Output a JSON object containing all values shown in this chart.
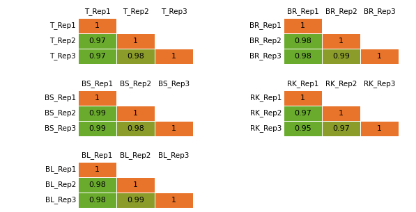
{
  "matrices": [
    {
      "name": "T",
      "col_labels": [
        "T_Rep1",
        "T_Rep2",
        "T_Rep3"
      ],
      "row_labels": [
        "T_Rep1",
        "T_Rep2",
        "T_Rep3"
      ],
      "values": [
        [
          1,
          null,
          null
        ],
        [
          0.97,
          1,
          null
        ],
        [
          0.97,
          0.98,
          1
        ]
      ]
    },
    {
      "name": "BR",
      "col_labels": [
        "BR_Rep1",
        "BR_Rep2",
        "BR_Rep3"
      ],
      "row_labels": [
        "BR_Rep1",
        "BR_Rep2",
        "BR_Rep3"
      ],
      "values": [
        [
          1,
          null,
          null
        ],
        [
          0.98,
          1,
          null
        ],
        [
          0.98,
          0.99,
          1
        ]
      ]
    },
    {
      "name": "BS",
      "col_labels": [
        "BS_Rep1",
        "BS_Rep2",
        "BS_Rep3"
      ],
      "row_labels": [
        "BS_Rep1",
        "BS_Rep2",
        "BS_Rep3"
      ],
      "values": [
        [
          1,
          null,
          null
        ],
        [
          0.99,
          1,
          null
        ],
        [
          0.99,
          0.98,
          1
        ]
      ]
    },
    {
      "name": "RK",
      "col_labels": [
        "RK_Rep1",
        "RK_Rep2",
        "RK_Rep3"
      ],
      "row_labels": [
        "RK_Rep1",
        "RK_Rep2",
        "RK_Rep3"
      ],
      "values": [
        [
          1,
          null,
          null
        ],
        [
          0.97,
          1,
          null
        ],
        [
          0.95,
          0.97,
          1
        ]
      ]
    },
    {
      "name": "BL",
      "col_labels": [
        "BL_Rep1",
        "BL_Rep2",
        "BL_Rep3"
      ],
      "row_labels": [
        "BL_Rep1",
        "BL_Rep2",
        "BL_Rep3"
      ],
      "values": [
        [
          1,
          null,
          null
        ],
        [
          0.98,
          1,
          null
        ],
        [
          0.98,
          0.99,
          1
        ]
      ]
    }
  ],
  "color_diagonal": "#E8732A",
  "color_offdiag_green": "#6AAB2E",
  "color_offdiag_olive": "#8B9C2A",
  "color_empty": "#FFFFFF",
  "text_color": "#000000",
  "background_color": "#FFFFFF",
  "cell_fontsize": 8,
  "label_fontsize": 7.5
}
